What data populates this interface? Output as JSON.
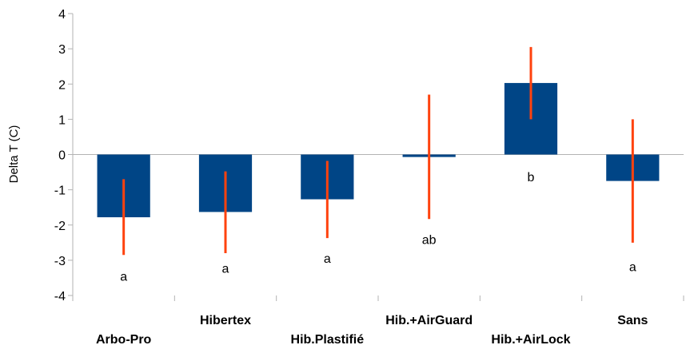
{
  "chart_data": {
    "type": "bar",
    "title": "",
    "xlabel": "",
    "ylabel": "Delta T (C)",
    "ylim": [
      -4,
      4
    ],
    "yticks": [
      -4,
      -3,
      -2,
      -1,
      0,
      1,
      2,
      3,
      4
    ],
    "categories": [
      "Arbo-Pro",
      "Hibertex",
      "Hib.Plastifié",
      "Hib.+AirGuard",
      "Hib.+AirLock",
      "Sans"
    ],
    "values": [
      -1.78,
      -1.63,
      -1.27,
      -0.07,
      2.03,
      -0.75
    ],
    "error_bars": [
      {
        "low": -2.85,
        "high": -0.7
      },
      {
        "low": -2.8,
        "high": -0.48
      },
      {
        "low": -2.37,
        "high": -0.18
      },
      {
        "low": -1.83,
        "high": 1.7
      },
      {
        "low": 1.0,
        "high": 3.05
      },
      {
        "low": -2.5,
        "high": 1.0
      }
    ],
    "significance_labels": [
      "a",
      "a",
      "a",
      "ab",
      "b",
      "a"
    ],
    "significance_y": [
      -3.45,
      -3.22,
      -2.93,
      -2.4,
      -0.62,
      -3.17
    ],
    "bar_color": "#004586",
    "error_color": "#ff420e",
    "grid": false,
    "legend": "none"
  }
}
